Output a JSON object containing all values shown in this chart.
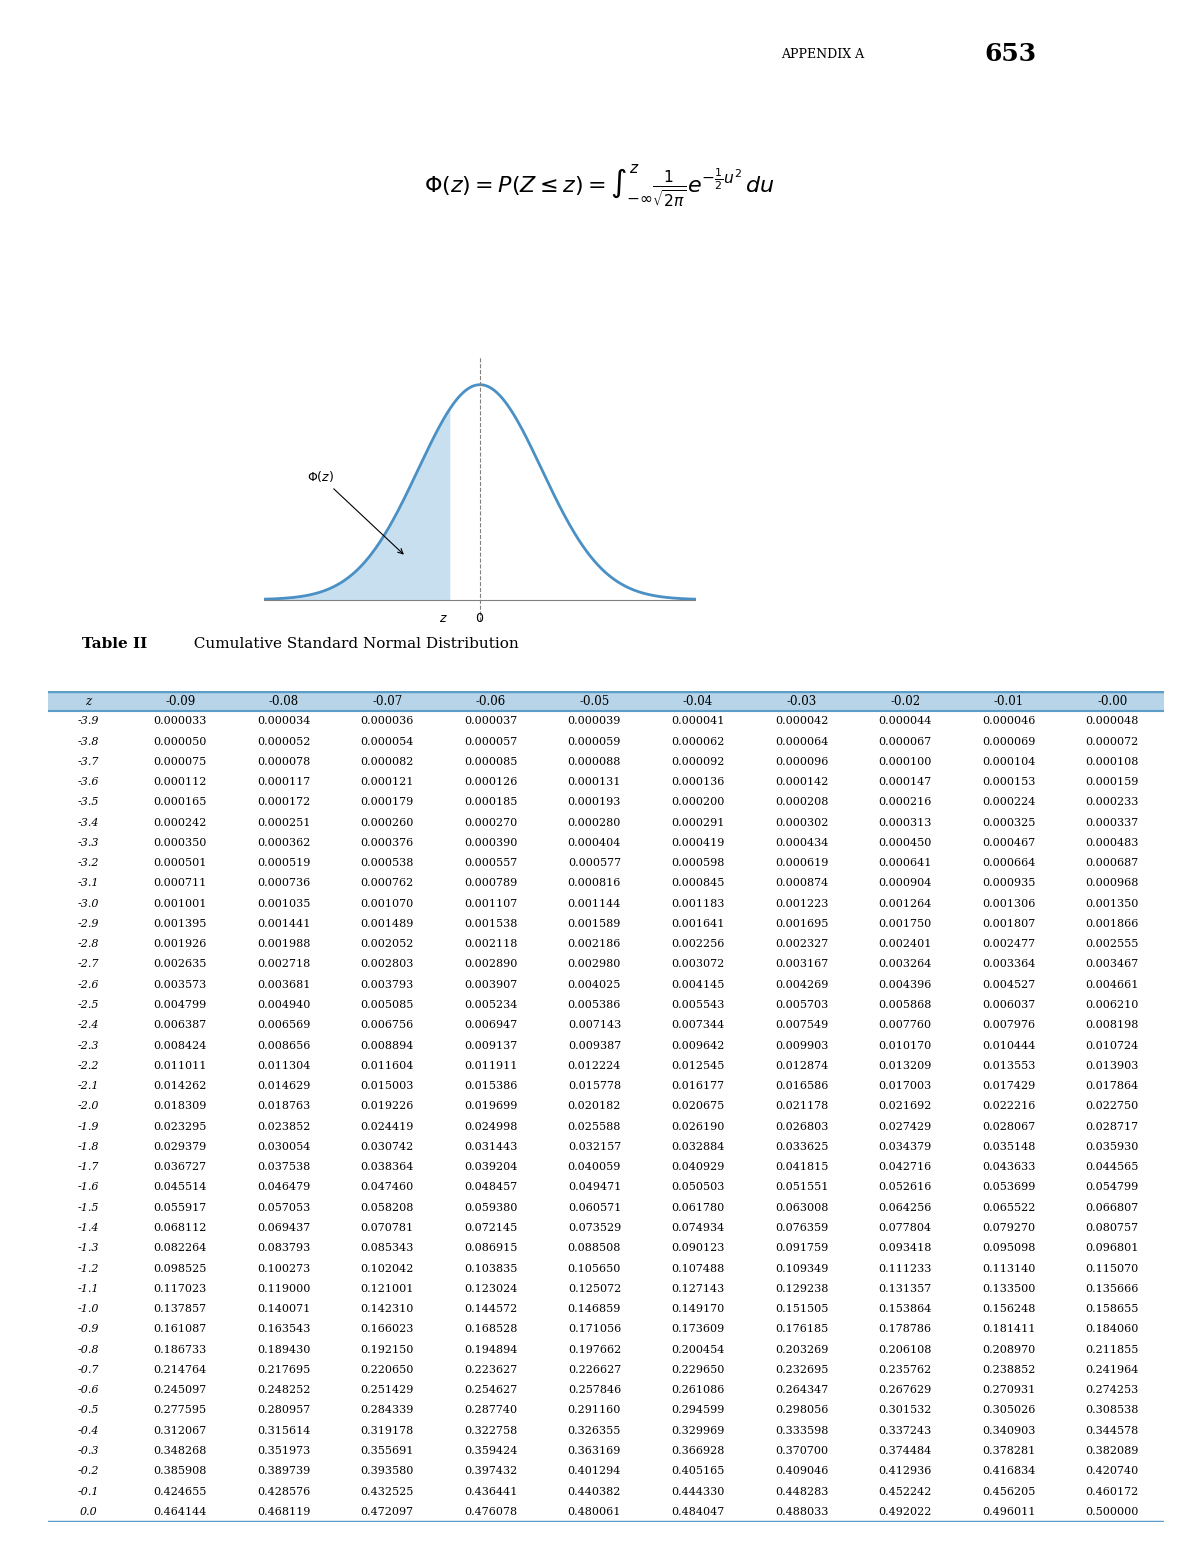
{
  "title_header": "APPENDIX A",
  "page_number": "653",
  "table_title_bold": "Table II",
  "table_title_regular": "  Cumulative Standard Normal Distribution",
  "col_headers": [
    "z",
    "-0.09",
    "-0.08",
    "-0.07",
    "-0.06",
    "-0.05",
    "-0.04",
    "-0.03",
    "-0.02",
    "-0.01",
    "-0.00"
  ],
  "row_data": [
    [
      "-3.9",
      "0.000033",
      "0.000034",
      "0.000036",
      "0.000037",
      "0.000039",
      "0.000041",
      "0.000042",
      "0.000044",
      "0.000046",
      "0.000048"
    ],
    [
      "-3.8",
      "0.000050",
      "0.000052",
      "0.000054",
      "0.000057",
      "0.000059",
      "0.000062",
      "0.000064",
      "0.000067",
      "0.000069",
      "0.000072"
    ],
    [
      "-3.7",
      "0.000075",
      "0.000078",
      "0.000082",
      "0.000085",
      "0.000088",
      "0.000092",
      "0.000096",
      "0.000100",
      "0.000104",
      "0.000108"
    ],
    [
      "-3.6",
      "0.000112",
      "0.000117",
      "0.000121",
      "0.000126",
      "0.000131",
      "0.000136",
      "0.000142",
      "0.000147",
      "0.000153",
      "0.000159"
    ],
    [
      "-3.5",
      "0.000165",
      "0.000172",
      "0.000179",
      "0.000185",
      "0.000193",
      "0.000200",
      "0.000208",
      "0.000216",
      "0.000224",
      "0.000233"
    ],
    [
      "-3.4",
      "0.000242",
      "0.000251",
      "0.000260",
      "0.000270",
      "0.000280",
      "0.000291",
      "0.000302",
      "0.000313",
      "0.000325",
      "0.000337"
    ],
    [
      "-3.3",
      "0.000350",
      "0.000362",
      "0.000376",
      "0.000390",
      "0.000404",
      "0.000419",
      "0.000434",
      "0.000450",
      "0.000467",
      "0.000483"
    ],
    [
      "-3.2",
      "0.000501",
      "0.000519",
      "0.000538",
      "0.000557",
      "0.000577",
      "0.000598",
      "0.000619",
      "0.000641",
      "0.000664",
      "0.000687"
    ],
    [
      "-3.1",
      "0.000711",
      "0.000736",
      "0.000762",
      "0.000789",
      "0.000816",
      "0.000845",
      "0.000874",
      "0.000904",
      "0.000935",
      "0.000968"
    ],
    [
      "-3.0",
      "0.001001",
      "0.001035",
      "0.001070",
      "0.001107",
      "0.001144",
      "0.001183",
      "0.001223",
      "0.001264",
      "0.001306",
      "0.001350"
    ],
    [
      "-2.9",
      "0.001395",
      "0.001441",
      "0.001489",
      "0.001538",
      "0.001589",
      "0.001641",
      "0.001695",
      "0.001750",
      "0.001807",
      "0.001866"
    ],
    [
      "-2.8",
      "0.001926",
      "0.001988",
      "0.002052",
      "0.002118",
      "0.002186",
      "0.002256",
      "0.002327",
      "0.002401",
      "0.002477",
      "0.002555"
    ],
    [
      "-2.7",
      "0.002635",
      "0.002718",
      "0.002803",
      "0.002890",
      "0.002980",
      "0.003072",
      "0.003167",
      "0.003264",
      "0.003364",
      "0.003467"
    ],
    [
      "-2.6",
      "0.003573",
      "0.003681",
      "0.003793",
      "0.003907",
      "0.004025",
      "0.004145",
      "0.004269",
      "0.004396",
      "0.004527",
      "0.004661"
    ],
    [
      "-2.5",
      "0.004799",
      "0.004940",
      "0.005085",
      "0.005234",
      "0.005386",
      "0.005543",
      "0.005703",
      "0.005868",
      "0.006037",
      "0.006210"
    ],
    [
      "-2.4",
      "0.006387",
      "0.006569",
      "0.006756",
      "0.006947",
      "0.007143",
      "0.007344",
      "0.007549",
      "0.007760",
      "0.007976",
      "0.008198"
    ],
    [
      "-2.3",
      "0.008424",
      "0.008656",
      "0.008894",
      "0.009137",
      "0.009387",
      "0.009642",
      "0.009903",
      "0.010170",
      "0.010444",
      "0.010724"
    ],
    [
      "-2.2",
      "0.011011",
      "0.011304",
      "0.011604",
      "0.011911",
      "0.012224",
      "0.012545",
      "0.012874",
      "0.013209",
      "0.013553",
      "0.013903"
    ],
    [
      "-2.1",
      "0.014262",
      "0.014629",
      "0.015003",
      "0.015386",
      "0.015778",
      "0.016177",
      "0.016586",
      "0.017003",
      "0.017429",
      "0.017864"
    ],
    [
      "-2.0",
      "0.018309",
      "0.018763",
      "0.019226",
      "0.019699",
      "0.020182",
      "0.020675",
      "0.021178",
      "0.021692",
      "0.022216",
      "0.022750"
    ],
    [
      "-1.9",
      "0.023295",
      "0.023852",
      "0.024419",
      "0.024998",
      "0.025588",
      "0.026190",
      "0.026803",
      "0.027429",
      "0.028067",
      "0.028717"
    ],
    [
      "-1.8",
      "0.029379",
      "0.030054",
      "0.030742",
      "0.031443",
      "0.032157",
      "0.032884",
      "0.033625",
      "0.034379",
      "0.035148",
      "0.035930"
    ],
    [
      "-1.7",
      "0.036727",
      "0.037538",
      "0.038364",
      "0.039204",
      "0.040059",
      "0.040929",
      "0.041815",
      "0.042716",
      "0.043633",
      "0.044565"
    ],
    [
      "-1.6",
      "0.045514",
      "0.046479",
      "0.047460",
      "0.048457",
      "0.049471",
      "0.050503",
      "0.051551",
      "0.052616",
      "0.053699",
      "0.054799"
    ],
    [
      "-1.5",
      "0.055917",
      "0.057053",
      "0.058208",
      "0.059380",
      "0.060571",
      "0.061780",
      "0.063008",
      "0.064256",
      "0.065522",
      "0.066807"
    ],
    [
      "-1.4",
      "0.068112",
      "0.069437",
      "0.070781",
      "0.072145",
      "0.073529",
      "0.074934",
      "0.076359",
      "0.077804",
      "0.079270",
      "0.080757"
    ],
    [
      "-1.3",
      "0.082264",
      "0.083793",
      "0.085343",
      "0.086915",
      "0.088508",
      "0.090123",
      "0.091759",
      "0.093418",
      "0.095098",
      "0.096801"
    ],
    [
      "-1.2",
      "0.098525",
      "0.100273",
      "0.102042",
      "0.103835",
      "0.105650",
      "0.107488",
      "0.109349",
      "0.111233",
      "0.113140",
      "0.115070"
    ],
    [
      "-1.1",
      "0.117023",
      "0.119000",
      "0.121001",
      "0.123024",
      "0.125072",
      "0.127143",
      "0.129238",
      "0.131357",
      "0.133500",
      "0.135666"
    ],
    [
      "-1.0",
      "0.137857",
      "0.140071",
      "0.142310",
      "0.144572",
      "0.146859",
      "0.149170",
      "0.151505",
      "0.153864",
      "0.156248",
      "0.158655"
    ],
    [
      "-0.9",
      "0.161087",
      "0.163543",
      "0.166023",
      "0.168528",
      "0.171056",
      "0.173609",
      "0.176185",
      "0.178786",
      "0.181411",
      "0.184060"
    ],
    [
      "-0.8",
      "0.186733",
      "0.189430",
      "0.192150",
      "0.194894",
      "0.197662",
      "0.200454",
      "0.203269",
      "0.206108",
      "0.208970",
      "0.211855"
    ],
    [
      "-0.7",
      "0.214764",
      "0.217695",
      "0.220650",
      "0.223627",
      "0.226627",
      "0.229650",
      "0.232695",
      "0.235762",
      "0.238852",
      "0.241964"
    ],
    [
      "-0.6",
      "0.245097",
      "0.248252",
      "0.251429",
      "0.254627",
      "0.257846",
      "0.261086",
      "0.264347",
      "0.267629",
      "0.270931",
      "0.274253"
    ],
    [
      "-0.5",
      "0.277595",
      "0.280957",
      "0.284339",
      "0.287740",
      "0.291160",
      "0.294599",
      "0.298056",
      "0.301532",
      "0.305026",
      "0.308538"
    ],
    [
      "-0.4",
      "0.312067",
      "0.315614",
      "0.319178",
      "0.322758",
      "0.326355",
      "0.329969",
      "0.333598",
      "0.337243",
      "0.340903",
      "0.344578"
    ],
    [
      "-0.3",
      "0.348268",
      "0.351973",
      "0.355691",
      "0.359424",
      "0.363169",
      "0.366928",
      "0.370700",
      "0.374484",
      "0.378281",
      "0.382089"
    ],
    [
      "-0.2",
      "0.385908",
      "0.389739",
      "0.393580",
      "0.397432",
      "0.401294",
      "0.405165",
      "0.409046",
      "0.412936",
      "0.416834",
      "0.420740"
    ],
    [
      "-0.1",
      "0.424655",
      "0.428576",
      "0.432525",
      "0.436441",
      "0.440382",
      "0.444330",
      "0.448283",
      "0.452242",
      "0.456205",
      "0.460172"
    ],
    [
      "0.0",
      "0.464144",
      "0.468119",
      "0.472097",
      "0.476078",
      "0.480061",
      "0.484047",
      "0.488033",
      "0.492022",
      "0.496011",
      "0.500000"
    ]
  ],
  "header_bg": "#b8d4e8",
  "header_border": "#5b9dc7",
  "row_bg_even": "#ffffff",
  "row_bg_odd": "#ffffff",
  "curve_color": "#4a90c4",
  "shade_color": "#c8dff0",
  "background_color": "#ffffff"
}
